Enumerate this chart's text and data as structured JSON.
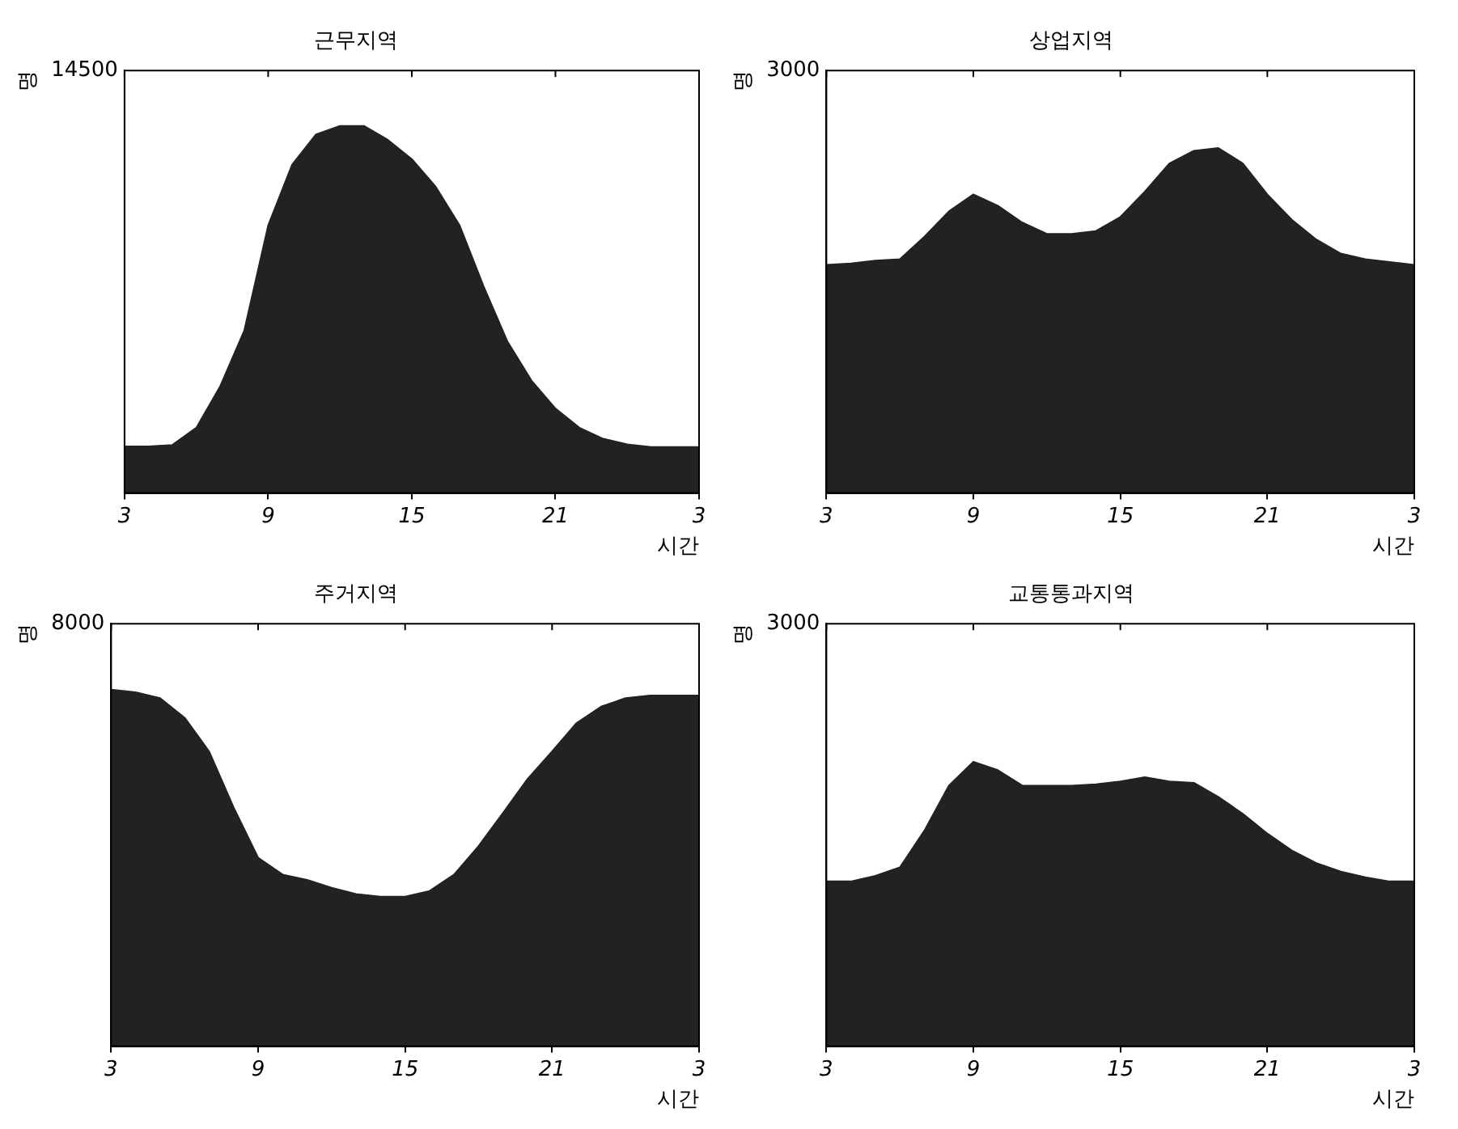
{
  "chart_data": [
    {
      "type": "area",
      "title": "근무지역",
      "xlabel": "시간",
      "ylabel": "명",
      "categories": [
        "3",
        null,
        null,
        null,
        null,
        null,
        "9",
        null,
        null,
        null,
        null,
        null,
        "15",
        null,
        null,
        null,
        null,
        null,
        "21",
        null,
        null,
        null,
        null,
        null,
        "3"
      ],
      "series": [
        {
          "color": "#222222",
          "values": [
            1600,
            1600,
            1650,
            2240,
            3670,
            5570,
            9180,
            11270,
            12310,
            12600,
            12600,
            12120,
            11460,
            10510,
            9180,
            7090,
            5190,
            3860,
            2900,
            2240,
            1860,
            1670,
            1580,
            1580,
            1580
          ]
        }
      ],
      "ylim": [
        0,
        14500
      ],
      "yticks": [
        0,
        14500
      ]
    },
    {
      "type": "area",
      "title": "상업지역",
      "xlabel": "시간",
      "ylabel": "명",
      "categories": [
        "3",
        null,
        null,
        null,
        null,
        null,
        "9",
        null,
        null,
        null,
        null,
        null,
        "15",
        null,
        null,
        null,
        null,
        null,
        "21",
        null,
        null,
        null,
        null,
        null,
        "3"
      ],
      "series": [
        {
          "color": "#222222",
          "values": [
            1620,
            1630,
            1650,
            1660,
            1820,
            2000,
            2120,
            2040,
            1920,
            1840,
            1840,
            1860,
            1960,
            2140,
            2340,
            2430,
            2450,
            2340,
            2120,
            1940,
            1800,
            1700,
            1660,
            1640,
            1620
          ]
        }
      ],
      "ylim": [
        0,
        3000
      ],
      "yticks": [
        0,
        3000
      ]
    },
    {
      "type": "area",
      "title": "주거지역",
      "xlabel": "시간",
      "ylabel": "명",
      "categories": [
        "3",
        null,
        null,
        null,
        null,
        null,
        "9",
        null,
        null,
        null,
        null,
        null,
        "15",
        null,
        null,
        null,
        null,
        null,
        "21",
        null,
        null,
        null,
        null,
        null,
        "3"
      ],
      "series": [
        {
          "color": "#222222",
          "values": [
            6750,
            6700,
            6590,
            6220,
            5580,
            4520,
            3570,
            3250,
            3150,
            3000,
            2880,
            2830,
            2830,
            2940,
            3250,
            3790,
            4420,
            5060,
            5580,
            6120,
            6430,
            6590,
            6640,
            6640,
            6640
          ]
        }
      ],
      "ylim": [
        0,
        8000
      ],
      "yticks": [
        0,
        8000
      ]
    },
    {
      "type": "area",
      "title": "교통통과지역",
      "xlabel": "시간",
      "ylabel": "명",
      "categories": [
        "3",
        null,
        null,
        null,
        null,
        null,
        "9",
        null,
        null,
        null,
        null,
        null,
        "15",
        null,
        null,
        null,
        null,
        null,
        "21",
        null,
        null,
        null,
        null,
        null,
        "3"
      ],
      "series": [
        {
          "color": "#222222",
          "values": [
            1170,
            1170,
            1210,
            1270,
            1530,
            1850,
            2020,
            1960,
            1850,
            1850,
            1850,
            1860,
            1880,
            1910,
            1880,
            1870,
            1770,
            1650,
            1510,
            1390,
            1300,
            1240,
            1200,
            1170,
            1170
          ]
        }
      ],
      "ylim": [
        0,
        3000
      ],
      "yticks": [
        0,
        3000
      ]
    }
  ]
}
